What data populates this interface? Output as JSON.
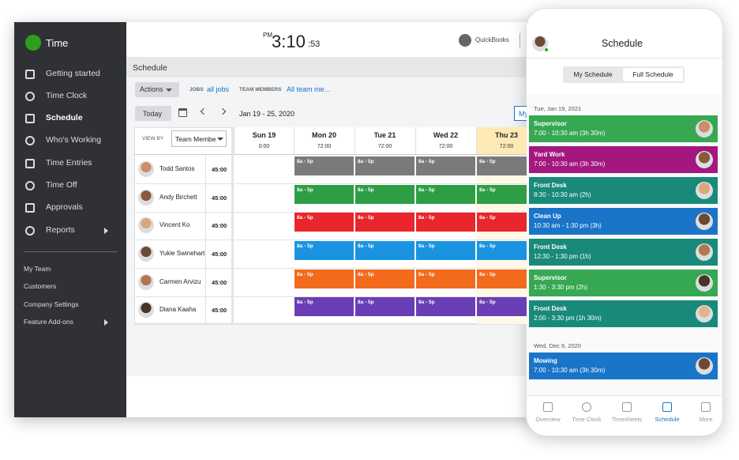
{
  "sidebar": {
    "brand": "Time",
    "nav": [
      "Getting started",
      "Time Clock",
      "Schedule",
      "Who's Working",
      "Time Entries",
      "Time Off",
      "Approvals",
      "Reports"
    ],
    "active": 2,
    "secondary": [
      "My Team",
      "Customers",
      "Company Settings",
      "Feature Add-ons"
    ]
  },
  "topbar": {
    "period": "PM",
    "clock": "3:10",
    "seconds": ":53",
    "product": "QuickBooks"
  },
  "schedule": {
    "title": "Schedule",
    "actions": "Actions",
    "jobs_label": "JOBS",
    "jobs_value": "all jobs",
    "members_label": "TEAM MEMBERS",
    "members_value": "All team me...",
    "today": "Today",
    "range": "Jan 19 - 25, 2020",
    "my": "My",
    "view_by": "VIEW BY",
    "view_value": "Team Membe",
    "days": [
      {
        "name": "Sun 19",
        "hours": "0:00"
      },
      {
        "name": "Mon 20",
        "hours": "72:00"
      },
      {
        "name": "Tue 21",
        "hours": "72:00"
      },
      {
        "name": "Wed 22",
        "hours": "72:00"
      },
      {
        "name": "Thu 23",
        "hours": "72:00"
      }
    ],
    "rows": [
      {
        "name": "Todd Santos",
        "hours": "45:00",
        "shift": "8a - 5p",
        "color": "#7a7a7a"
      },
      {
        "name": "Andy Birchett",
        "hours": "45:00",
        "shift": "8a - 5p",
        "color": "#2e9e45"
      },
      {
        "name": "Vincent Ko",
        "hours": "45:00",
        "shift": "8a - 5p",
        "color": "#e8262b"
      },
      {
        "name": "Yukie Swinehart",
        "hours": "45:00",
        "shift": "8a - 5p",
        "color": "#1a94e0"
      },
      {
        "name": "Carmen Arvizu",
        "hours": "45:00",
        "shift": "8a - 5p",
        "color": "#f26a1b"
      },
      {
        "name": "Diana Kaaha",
        "hours": "45:00",
        "shift": "8a - 5p",
        "color": "#6a3fb5"
      }
    ]
  },
  "phone": {
    "title": "Schedule",
    "tabs": [
      "My Schedule",
      "Full Schedule"
    ],
    "active_tab": 1,
    "groups": [
      {
        "date": "Tue, Jan 19, 2021",
        "shifts": [
          {
            "title": "Supervisor",
            "time": "7:00 - 10:30 am (3h 30m)",
            "color": "#36a852"
          },
          {
            "title": "Yard Work",
            "time": "7:00 - 10:30 am (3h 30m)",
            "color": "#a3177e"
          },
          {
            "title": "Front Desk",
            "time": "8:30 - 10:30 am (2h)",
            "color": "#198a7a"
          },
          {
            "title": "Clean Up",
            "time": "10:30 am - 1:30 pm (3h)",
            "color": "#1a74c8"
          },
          {
            "title": "Front Desk",
            "time": "12:30 - 1:30 pm (1h)",
            "color": "#198a7a"
          },
          {
            "title": "Supervisor",
            "time": "1:30 - 3:30 pm (2h)",
            "color": "#36a852"
          },
          {
            "title": "Front Desk",
            "time": "2:00 - 3:30 pm (1h 30m)",
            "color": "#198a7a"
          }
        ]
      },
      {
        "date": "Wed, Dec 9, 2020",
        "shifts": [
          {
            "title": "Mowing",
            "time": "7:00 - 10:30 am (3h 30m)",
            "color": "#1a74c8"
          }
        ]
      }
    ],
    "nav": [
      "Overview",
      "Time Clock",
      "Timesheets",
      "Schedule",
      "More"
    ],
    "active_nav": 3
  }
}
